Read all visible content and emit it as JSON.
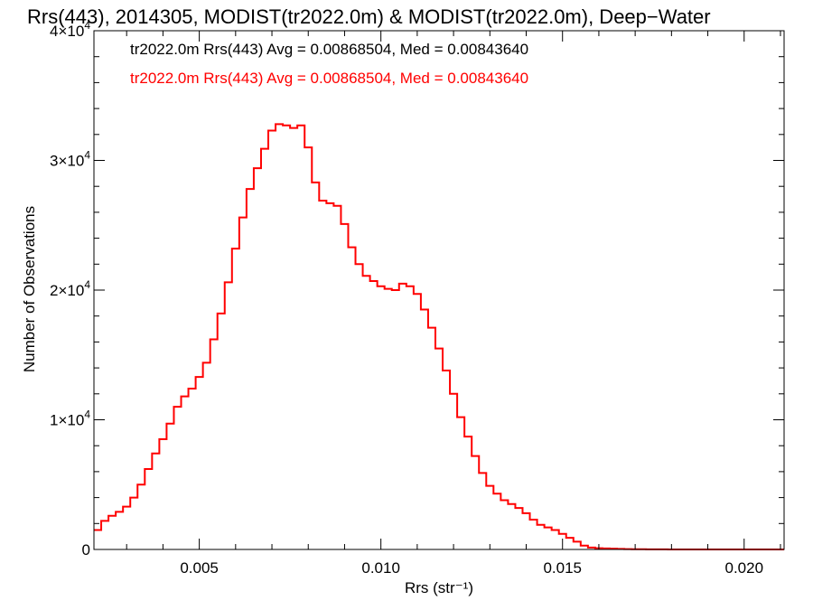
{
  "chart_data": {
    "type": "line",
    "style": "step",
    "title": "Rrs(443), 2014305, MODIST(tr2022.0m) & MODIST(tr2022.0m), Deep−Water",
    "xlabel": "Rrs (str⁻¹)",
    "ylabel": "Number of Observations",
    "xlim": [
      0.0021,
      0.0211
    ],
    "ylim": [
      0,
      40000
    ],
    "xticks": [
      0.005,
      0.01,
      0.015,
      0.02
    ],
    "xtick_labels": [
      "0.005",
      "0.010",
      "0.015",
      "0.020"
    ],
    "yticks": [
      0,
      10000,
      20000,
      30000,
      40000
    ],
    "ytick_labels": [
      {
        "base": "0",
        "exp": ""
      },
      {
        "base": "1×10",
        "exp": "4"
      },
      {
        "base": "2×10",
        "exp": "4"
      },
      {
        "base": "3×10",
        "exp": "4"
      },
      {
        "base": "4×10",
        "exp": "4"
      }
    ],
    "grid": false,
    "legend_position": "top-left",
    "legend": [
      {
        "text": "tr2022.0m Rrs(443) Avg = 0.00868504, Med = 0.00843640",
        "color": "#000000"
      },
      {
        "text": "tr2022.0m Rrs(443) Avg = 0.00868504, Med = 0.00843640",
        "color": "#ff0000"
      }
    ],
    "series": [
      {
        "color": "#ff0000",
        "x": [
          0.0021,
          0.0023,
          0.0025,
          0.0027,
          0.0029,
          0.0031,
          0.0033,
          0.0035,
          0.0037,
          0.0039,
          0.0041,
          0.0043,
          0.0045,
          0.0047,
          0.0049,
          0.0051,
          0.0053,
          0.0055,
          0.0057,
          0.0059,
          0.0061,
          0.0063,
          0.0065,
          0.0067,
          0.0069,
          0.0071,
          0.0073,
          0.0075,
          0.0077,
          0.0079,
          0.0081,
          0.0083,
          0.0085,
          0.0087,
          0.0089,
          0.0091,
          0.0093,
          0.0095,
          0.0097,
          0.0099,
          0.0101,
          0.0103,
          0.0105,
          0.0107,
          0.0109,
          0.0111,
          0.0113,
          0.0115,
          0.0117,
          0.0119,
          0.0121,
          0.0123,
          0.0125,
          0.0127,
          0.0129,
          0.0131,
          0.0133,
          0.0135,
          0.0137,
          0.0139,
          0.0141,
          0.0143,
          0.0145,
          0.0147,
          0.0149,
          0.0151,
          0.0153,
          0.0155,
          0.0157,
          0.0159,
          0.0161,
          0.0163,
          0.0165,
          0.0167,
          0.0169,
          0.0171,
          0.0173,
          0.0175,
          0.0177,
          0.0179,
          0.0181,
          0.0183,
          0.0185,
          0.0187,
          0.0189,
          0.0191,
          0.0193,
          0.0195,
          0.0197,
          0.0199,
          0.0201,
          0.0203,
          0.0205,
          0.0207,
          0.0209
        ],
        "y": [
          1500,
          2200,
          2600,
          2900,
          3300,
          4000,
          5000,
          6200,
          7400,
          8500,
          9700,
          11000,
          11800,
          12400,
          13300,
          14400,
          16200,
          18200,
          20600,
          23200,
          25600,
          27800,
          29400,
          30900,
          32300,
          32800,
          32700,
          32500,
          32700,
          31000,
          28300,
          26900,
          26700,
          26500,
          25100,
          23300,
          22000,
          21100,
          20700,
          20300,
          20100,
          20000,
          20500,
          20300,
          19700,
          18500,
          17100,
          15500,
          13800,
          12000,
          10200,
          8700,
          7200,
          5900,
          4900,
          4300,
          3800,
          3500,
          3200,
          2800,
          2300,
          1900,
          1700,
          1500,
          1200,
          900,
          600,
          300,
          150,
          100,
          80,
          60,
          40,
          30,
          20,
          15,
          10,
          8,
          5,
          3,
          2,
          1,
          1,
          1,
          0,
          0,
          0,
          0,
          0,
          0,
          0,
          0,
          0,
          0,
          0
        ]
      }
    ]
  }
}
